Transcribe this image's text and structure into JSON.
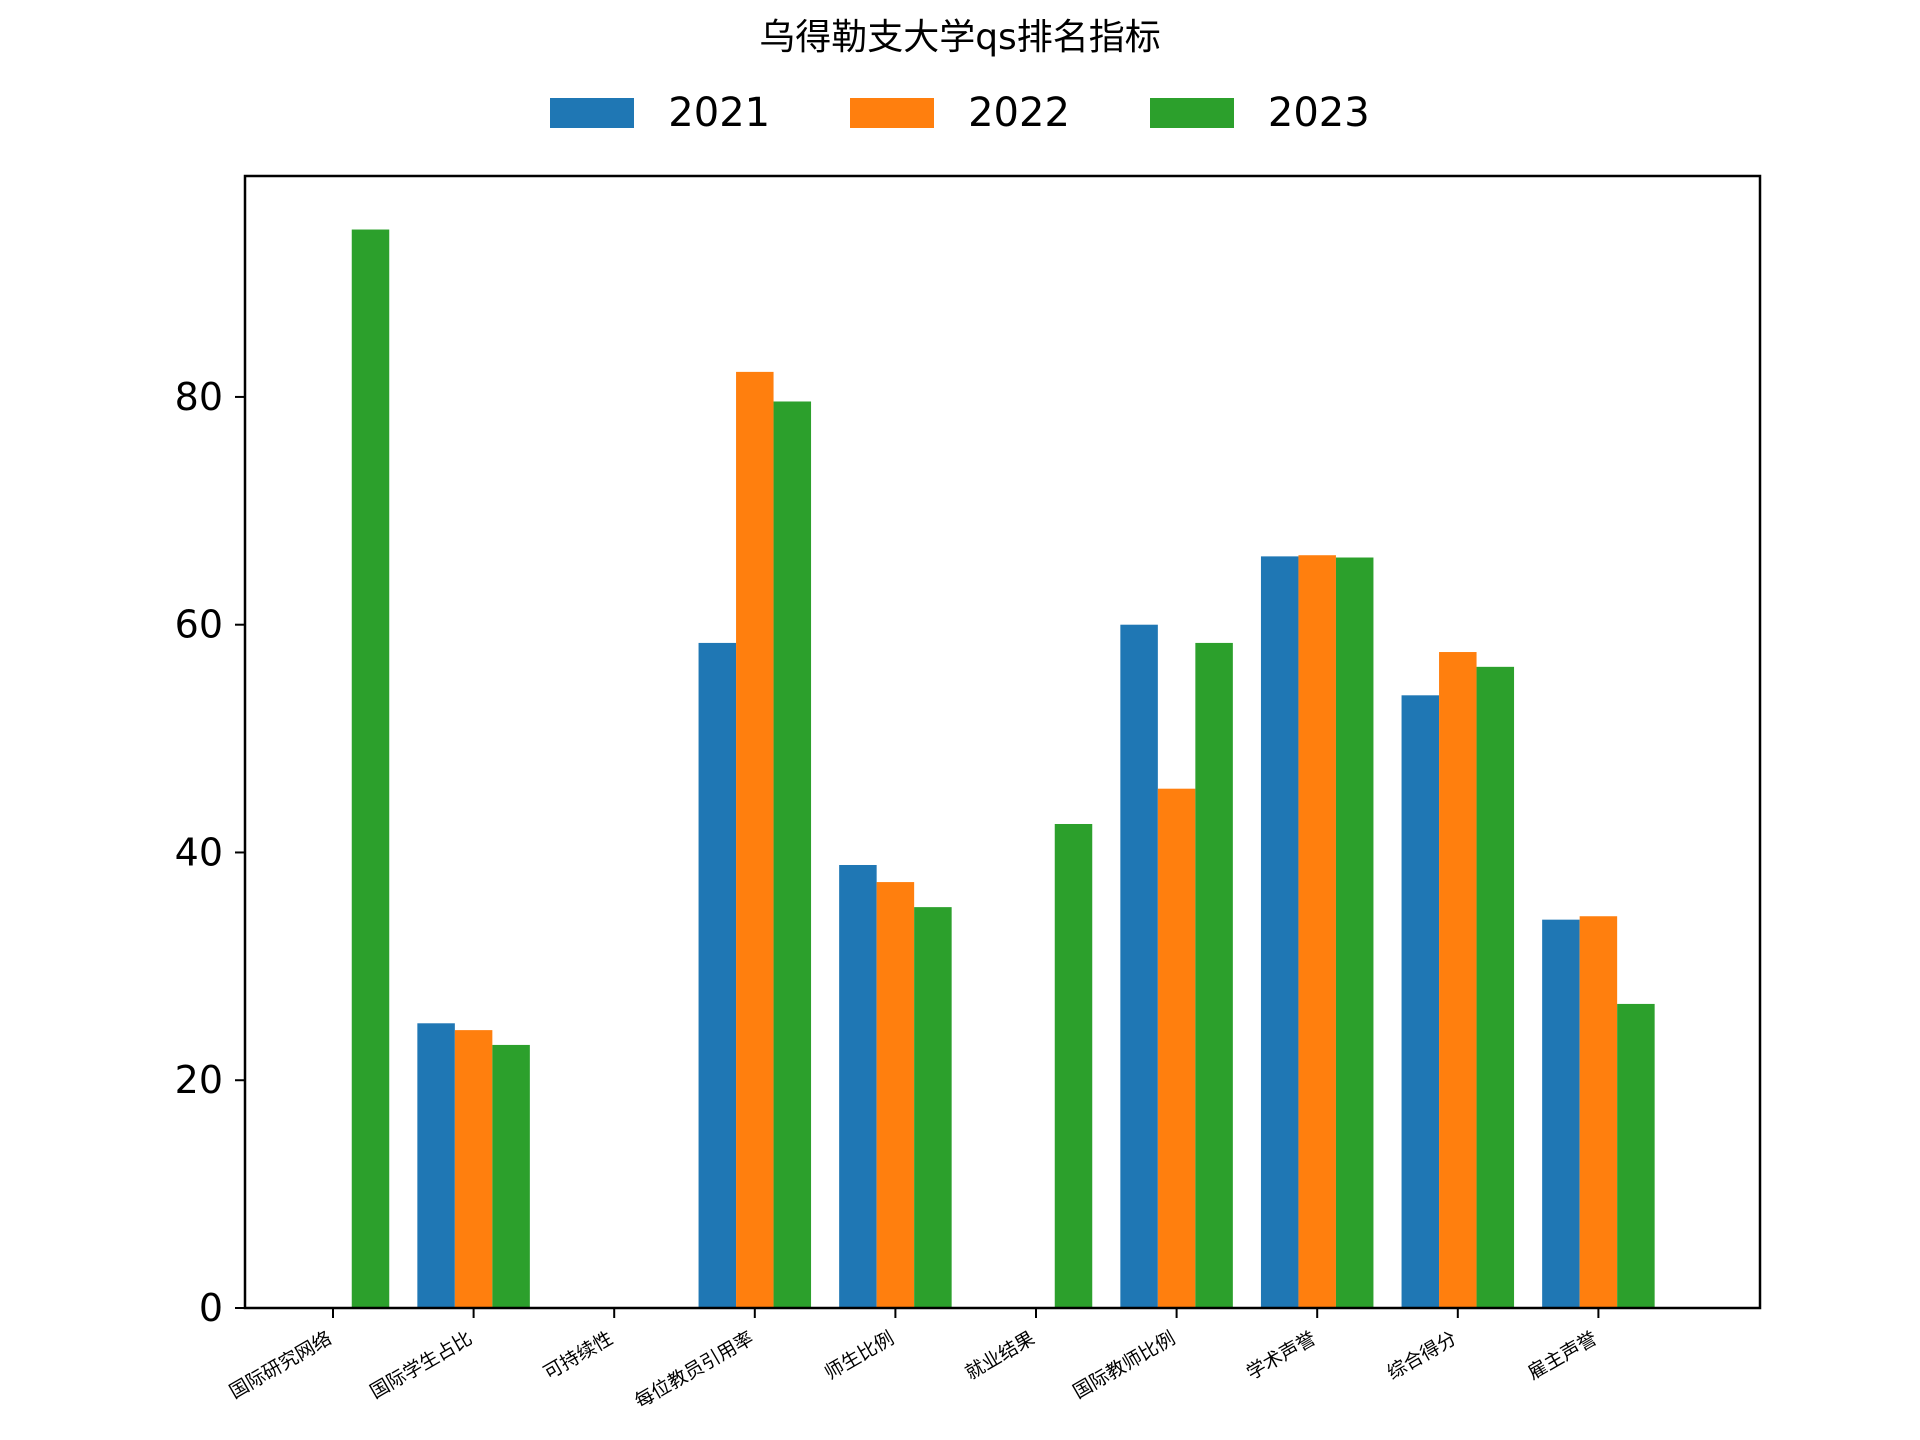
{
  "chart_data": {
    "type": "bar",
    "title": "乌得勒支大学qs排名指标",
    "xlabel": "",
    "ylabel": "",
    "categories": [
      "国际研究网络",
      "国际学生占比",
      "可持续性",
      "每位教员引用率",
      "师生比例",
      "就业结果",
      "国际教师比例",
      "学术声誉",
      "综合得分",
      "雇主声誉"
    ],
    "series": [
      {
        "name": "2021",
        "color": "#1f77b4",
        "values": [
          null,
          25.0,
          null,
          58.4,
          38.9,
          null,
          60.0,
          66.0,
          53.8,
          34.1
        ]
      },
      {
        "name": "2022",
        "color": "#ff7f0e",
        "values": [
          null,
          24.4,
          null,
          82.2,
          37.4,
          null,
          45.6,
          66.1,
          57.6,
          34.4
        ]
      },
      {
        "name": "2023",
        "color": "#2ca02c",
        "values": [
          94.7,
          23.1,
          null,
          79.6,
          35.2,
          42.5,
          58.4,
          65.9,
          56.3,
          26.7
        ]
      }
    ],
    "ylim": [
      0,
      99.4
    ],
    "yticks": [
      0,
      20,
      40,
      60,
      80
    ],
    "legend_position": "top-center",
    "grid": false
  }
}
